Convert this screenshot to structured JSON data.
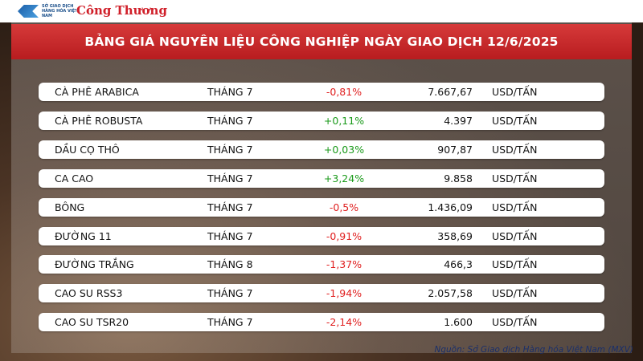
{
  "header": {
    "logos": {
      "exchange": "SỞ GIAO DỊCH HÀNG HÓA VIỆT NAM",
      "newspaper": "Công Thương"
    },
    "title": "BẢNG GIÁ NGUYÊN LIỆU CÔNG NGHIỆP NGÀY GIAO DỊCH 12/6/2025"
  },
  "positive_color": "#1a9a1a",
  "negative_color": "#e02020",
  "table": {
    "rows": [
      [
        "CÀ PHÊ ARABICA",
        "THÁNG 7",
        "-0,81%",
        "7.667,67",
        "USD/TẤN"
      ],
      [
        "CÀ PHÊ ROBUSTA",
        "THÁNG 7",
        "+0,11%",
        "4.397",
        "USD/TẤN"
      ],
      [
        "DẦU CỌ THÔ",
        "THÁNG 7",
        "+0,03%",
        "907,87",
        "USD/TẤN"
      ],
      [
        "CA CAO",
        "THÁNG 7",
        "+3,24%",
        "9.858",
        "USD/TẤN"
      ],
      [
        "BÔNG",
        "THÁNG 7",
        "-0,5%",
        "1.436,09",
        "USD/TẤN"
      ],
      [
        "ĐƯỜNG 11",
        "THÁNG 7",
        "-0,91%",
        "358,69",
        "USD/TẤN"
      ],
      [
        "ĐƯỜNG TRẮNG",
        "THÁNG 8",
        "-1,37%",
        "466,3",
        "USD/TẤN"
      ],
      [
        "CAO SU RSS3",
        "THÁNG 7",
        "-1,94%",
        "2.057,58",
        "USD/TẤN"
      ],
      [
        "CAO SU TSR20",
        "THÁNG 7",
        "-2,14%",
        "1.600",
        "USD/TẤN"
      ]
    ]
  },
  "source": "Nguồn: Sở Giao dịch Hàng hóa Việt Nam (MXV)"
}
